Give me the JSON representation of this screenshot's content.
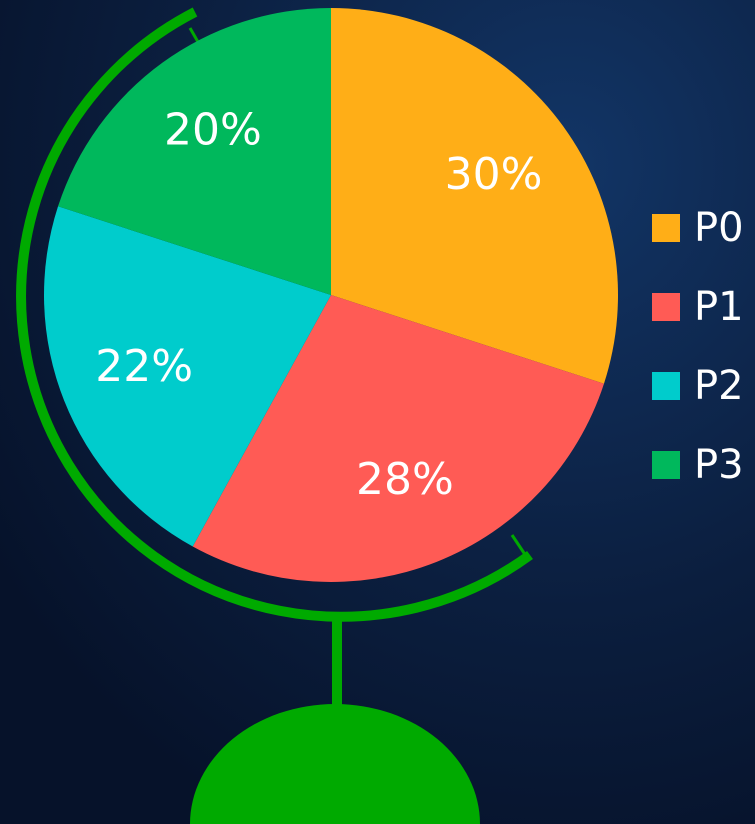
{
  "chart_data": {
    "type": "pie",
    "categories": [
      "P0",
      "P1",
      "P2",
      "P3"
    ],
    "values": [
      30,
      28,
      22,
      20
    ],
    "value_labels": [
      "30%",
      "28%",
      "22%",
      "20%"
    ],
    "colors": [
      "#ffae17",
      "#ff5b55",
      "#00cccc",
      "#00b85c"
    ],
    "legend": "right"
  }
}
